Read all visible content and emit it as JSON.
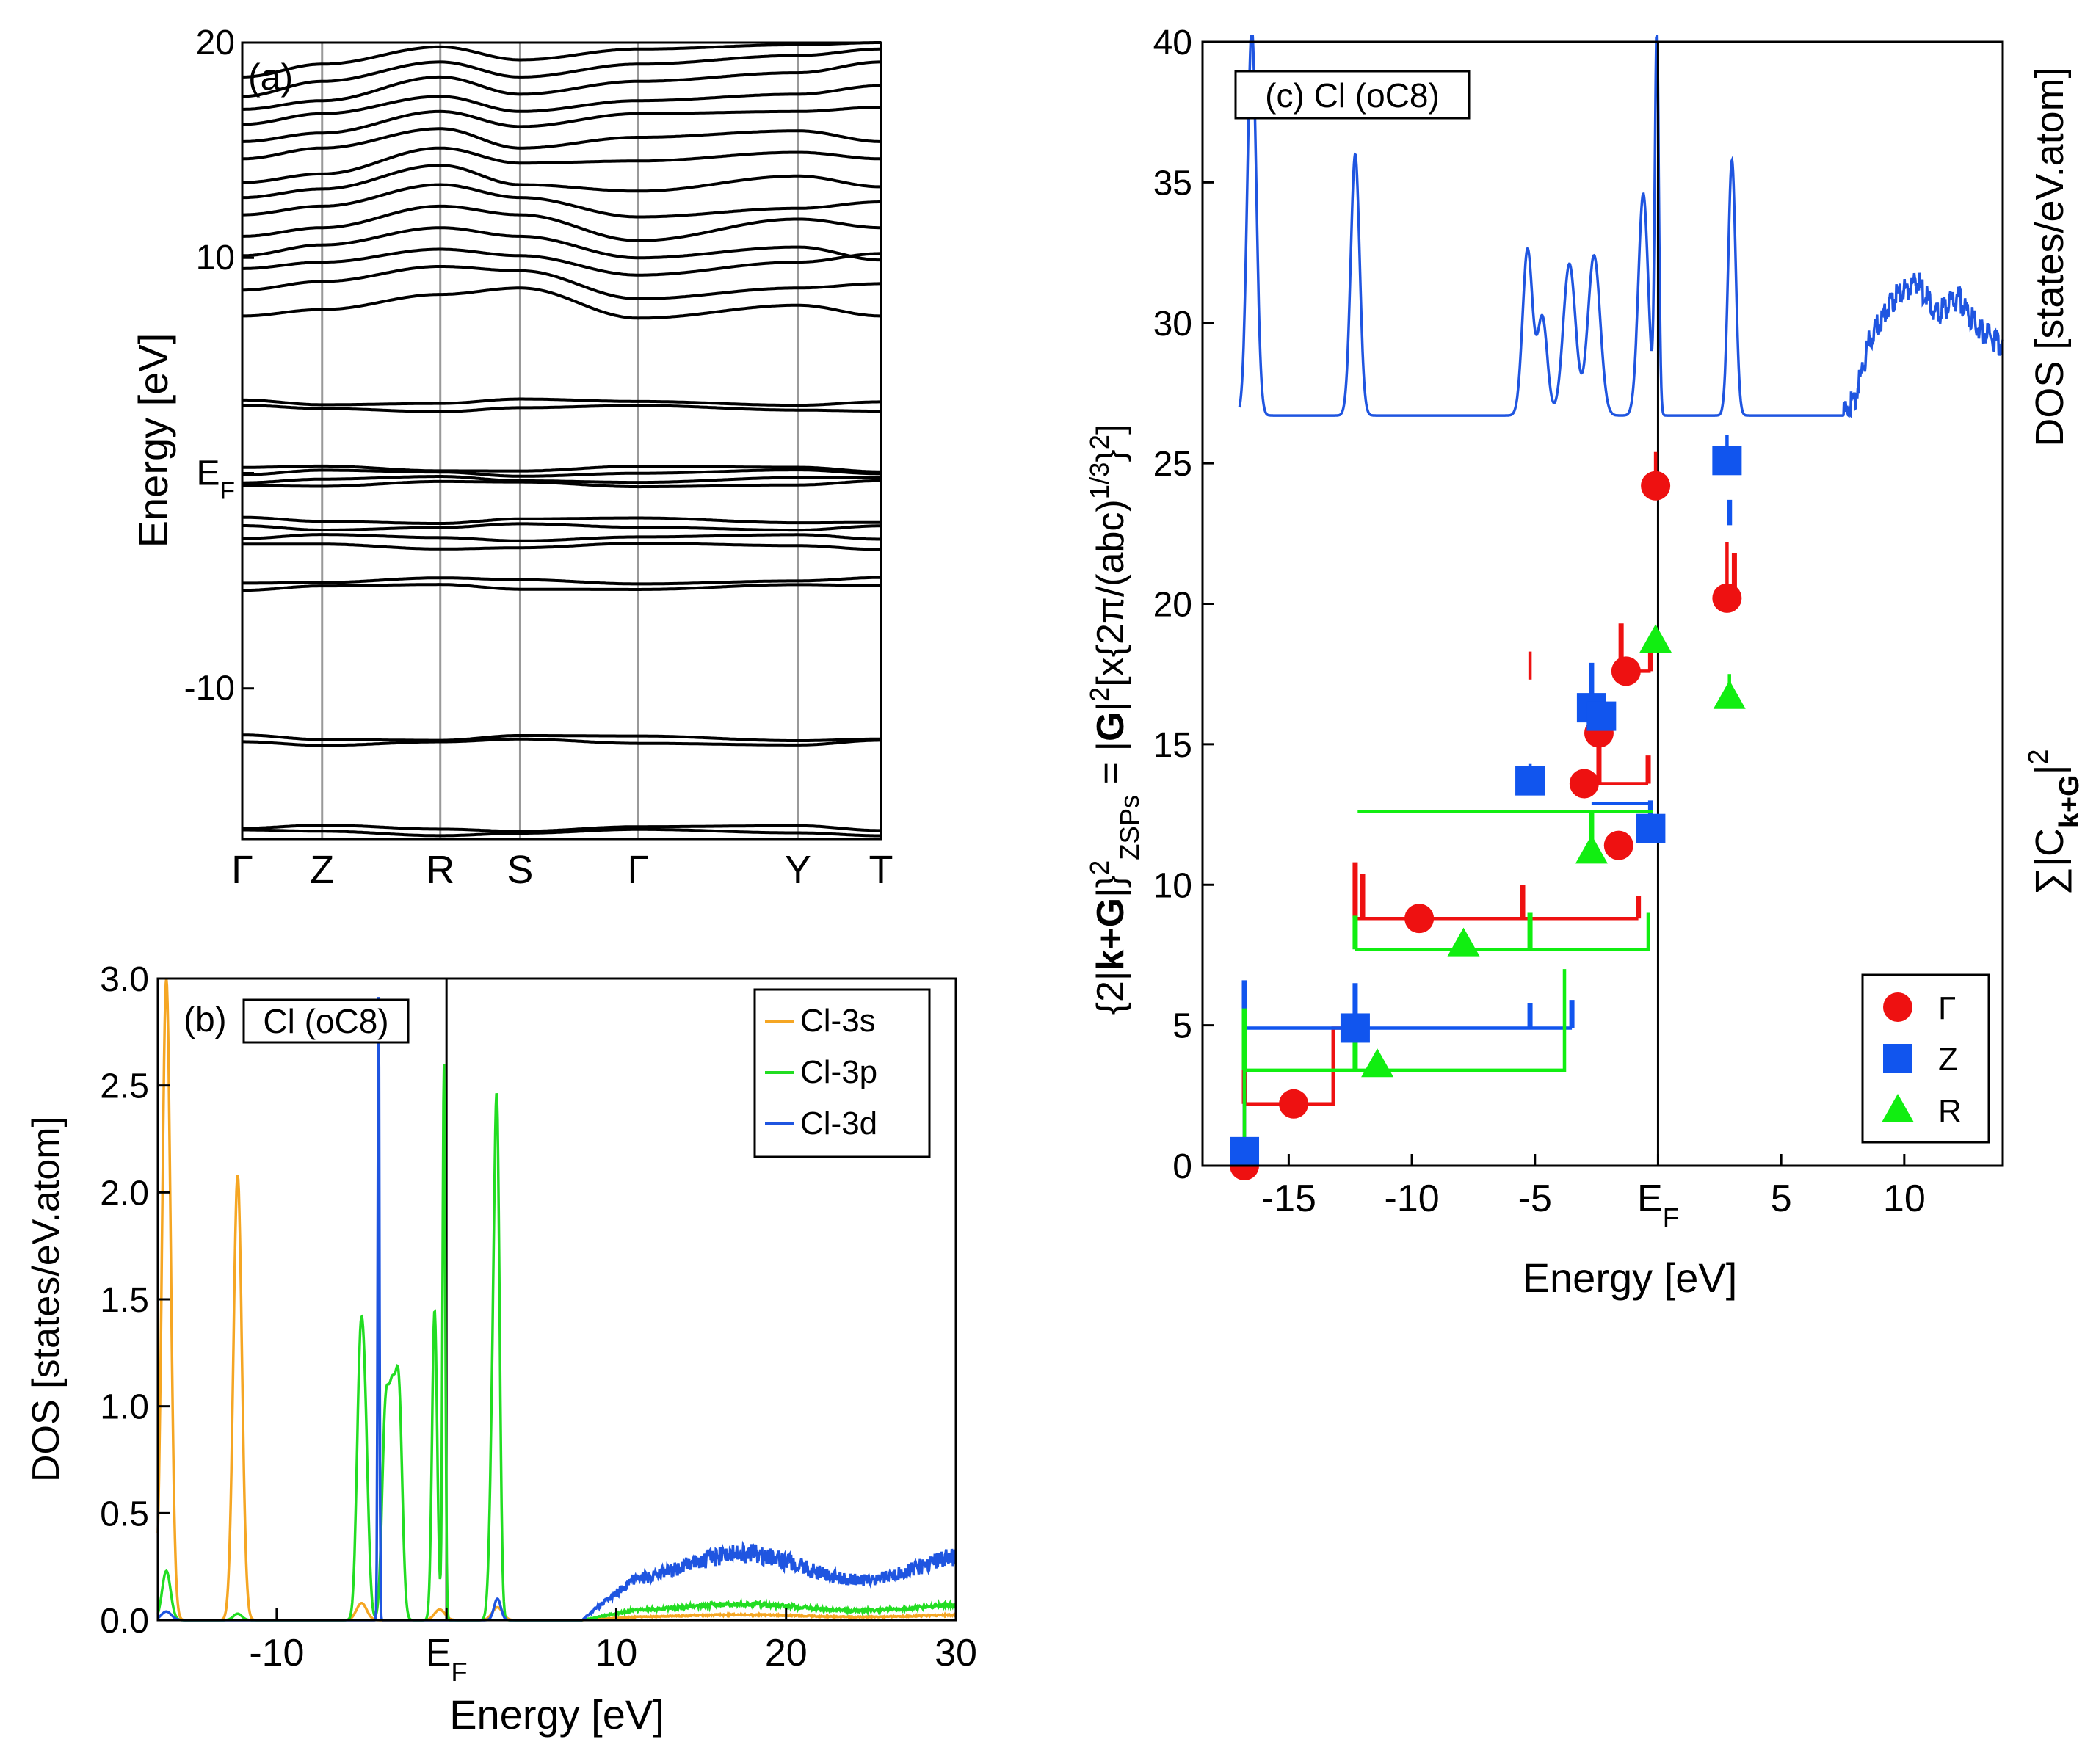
{
  "chart_data": [
    {
      "id": "a",
      "type": "line",
      "panel_label": "(a)",
      "ylabel": "Energy [eV]",
      "ylim": [
        -17,
        20
      ],
      "y_ticks": [
        {
          "value": 20,
          "label": "20"
        },
        {
          "value": 10,
          "label": "10"
        },
        {
          "value": 0,
          "label": "E",
          "sub": "F"
        },
        {
          "value": -10,
          "label": "-10"
        }
      ],
      "k_path": [
        {
          "label": "Γ",
          "pos": 0.0
        },
        {
          "label": "Z",
          "pos": 0.125
        },
        {
          "label": "R",
          "pos": 0.31
        },
        {
          "label": "S",
          "pos": 0.435
        },
        {
          "label": "Γ",
          "pos": 0.62
        },
        {
          "label": "Y",
          "pos": 0.87
        },
        {
          "label": "T",
          "pos": 1.0
        }
      ],
      "flat_bands": [
        -16.5,
        -16.7,
        -12.3,
        -12.5,
        -5.0,
        -5.3,
        -3.0,
        -3.4,
        -2.2,
        -2.5,
        -0.5,
        -0.3,
        0.0,
        0.2,
        3.0,
        3.3
      ],
      "dispersive_bands": [
        [
          7.3,
          7.6,
          8.3,
          8.6,
          7.2,
          7.8,
          7.3
        ],
        [
          8.5,
          8.9,
          9.6,
          9.4,
          8.1,
          8.6,
          8.8
        ],
        [
          9.5,
          9.8,
          10.4,
          10.1,
          9.2,
          9.8,
          10.2
        ],
        [
          10.1,
          10.6,
          11.4,
          11.0,
          10.0,
          10.5,
          9.9
        ],
        [
          11.0,
          11.4,
          12.4,
          12.0,
          10.8,
          11.8,
          11.4
        ],
        [
          12.0,
          12.4,
          13.4,
          12.8,
          11.9,
          12.3,
          12.6
        ],
        [
          12.8,
          13.2,
          14.3,
          13.4,
          13.1,
          13.8,
          13.3
        ],
        [
          13.5,
          13.9,
          15.1,
          14.4,
          14.5,
          14.9,
          14.6
        ],
        [
          14.6,
          15.1,
          16.0,
          15.1,
          15.6,
          15.9,
          15.4
        ],
        [
          15.4,
          15.8,
          16.8,
          16.1,
          16.7,
          16.8,
          17.0
        ],
        [
          16.2,
          16.7,
          17.5,
          16.8,
          17.3,
          17.6,
          18.0
        ],
        [
          16.9,
          17.3,
          18.4,
          17.6,
          18.2,
          18.6,
          19.1
        ],
        [
          17.5,
          18.2,
          19.1,
          18.4,
          19.0,
          19.4,
          19.7
        ],
        [
          18.4,
          19.0,
          19.8,
          19.2,
          19.7,
          19.9,
          20.0
        ]
      ]
    },
    {
      "id": "b",
      "type": "line",
      "panel_label": "(b)",
      "boxed_label": "Cl (oC8)",
      "xlabel": "Energy [eV]",
      "ylabel": "DOS [states/eV.atom]",
      "xlim": [
        -17,
        30
      ],
      "ylim": [
        0,
        3.0
      ],
      "x_ticks": [
        {
          "value": -10,
          "label": "-10"
        },
        {
          "value": 0,
          "label": "E",
          "sub": "F"
        },
        {
          "value": 10,
          "label": "10"
        },
        {
          "value": 20,
          "label": "20"
        },
        {
          "value": 30,
          "label": "30"
        }
      ],
      "y_ticks": [
        {
          "value": 0.0,
          "label": "0.0"
        },
        {
          "value": 0.5,
          "label": "0.5"
        },
        {
          "value": 1.0,
          "label": "1.0"
        },
        {
          "value": 1.5,
          "label": "1.5"
        },
        {
          "value": 2.0,
          "label": "2.0"
        },
        {
          "value": 2.5,
          "label": "2.5"
        },
        {
          "value": 3.0,
          "label": "3.0"
        }
      ],
      "series": [
        {
          "name": "Cl-3s",
          "color": "#f5a623",
          "peaks": [
            [
              -16.5,
              3.0,
              0.25
            ],
            [
              -12.3,
              2.08,
              0.25
            ],
            [
              -5.0,
              0.08,
              0.3
            ],
            [
              -0.4,
              0.05,
              0.3
            ],
            [
              3.0,
              0.06,
              0.3
            ]
          ],
          "tail": 0.02
        },
        {
          "name": "Cl-3p",
          "color": "#22dd22",
          "peaks": [
            [
              -16.5,
              0.23,
              0.25
            ],
            [
              -12.3,
              0.03,
              0.25
            ],
            [
              -5.1,
              1.06,
              0.2
            ],
            [
              -4.8,
              0.8,
              0.2
            ],
            [
              -3.6,
              0.92,
              0.2
            ],
            [
              -2.8,
              1.02,
              0.2
            ],
            [
              -3.2,
              0.88,
              0.2
            ],
            [
              -0.7,
              1.45,
              0.15
            ],
            [
              -0.15,
              2.6,
              0.08
            ],
            [
              3.0,
              1.65,
              0.15
            ],
            [
              2.8,
              1.2,
              0.2
            ]
          ],
          "tail": 0.06
        },
        {
          "name": "Cl-3d",
          "color": "#1f55e0",
          "peaks": [
            [
              -4.0,
              2.95,
              0.05
            ],
            [
              -16.5,
              0.04,
              0.3
            ],
            [
              3.0,
              0.1,
              0.2
            ]
          ],
          "tail": 0.25
        }
      ]
    },
    {
      "id": "c",
      "type": "scatter",
      "boxed_label": "(c) Cl (oC8)",
      "xlabel": "Energy [eV]",
      "ylabel_left": "{2|k+G|}²ZSPs = |G|²[x{2π/(abc)^1/3}²]",
      "ylabel_left_parts": {
        "pre": "{2|",
        "bold": "k+G",
        "mid": "|}",
        "sup1": "2",
        "sub": "ZSPs",
        "eq": " = |",
        "bold2": "G",
        "post": "|",
        "sup2": "2",
        "rest": "[x{2π/(abc)",
        "sup3": "1/3",
        "rest2": "}",
        "sup4": "2",
        "end": "]"
      },
      "ylabel_right_top": "DOS [states/eV.atom]",
      "ylabel_right_bottom": {
        "pre": "∑|C",
        "sub": "k+G",
        "post": "|",
        "sup": "2"
      },
      "xlim": [
        -18.5,
        14
      ],
      "ylim": [
        0,
        40
      ],
      "x_ticks": [
        {
          "value": -15,
          "label": "-15"
        },
        {
          "value": -10,
          "label": "-10"
        },
        {
          "value": -5,
          "label": "-5"
        },
        {
          "value": 0,
          "label": "E",
          "sub": "F"
        },
        {
          "value": 5,
          "label": "5"
        },
        {
          "value": 10,
          "label": "10"
        }
      ],
      "y_ticks": [
        {
          "value": 0,
          "label": "0"
        },
        {
          "value": 5,
          "label": "5"
        },
        {
          "value": 10,
          "label": "10"
        },
        {
          "value": 15,
          "label": "15"
        },
        {
          "value": 20,
          "label": "20"
        },
        {
          "value": 25,
          "label": "25"
        },
        {
          "value": 30,
          "label": "30"
        },
        {
          "value": 35,
          "label": "35"
        },
        {
          "value": 40,
          "label": "40"
        }
      ],
      "legend": [
        {
          "name": "Γ",
          "color": "#ee1111",
          "marker": "circle"
        },
        {
          "name": "Z",
          "color": "#1155ee",
          "marker": "square"
        },
        {
          "name": "R",
          "color": "#11ee11",
          "marker": "triangle"
        }
      ],
      "dos_inset": {
        "color": "#1f55e0",
        "baseline": 26.7,
        "peaks": [
          [
            -16.5,
            40.5,
            0.18
          ],
          [
            -12.3,
            36.0,
            0.18
          ],
          [
            -5.3,
            32.6,
            0.2
          ],
          [
            -4.7,
            30.2,
            0.2
          ],
          [
            -3.6,
            32.1,
            0.25
          ],
          [
            -2.6,
            32.4,
            0.25
          ],
          [
            -0.6,
            34.6,
            0.2
          ],
          [
            -0.05,
            40.5,
            0.08
          ],
          [
            3.0,
            35.8,
            0.15
          ]
        ],
        "high_energy": [
          [
            8.0,
            27.3
          ],
          [
            8.6,
            29.4
          ],
          [
            9.5,
            30.8
          ],
          [
            10.5,
            31.5
          ],
          [
            11.3,
            30.3
          ],
          [
            12.2,
            30.9
          ],
          [
            13.0,
            29.8
          ],
          [
            14.0,
            29.2
          ]
        ]
      },
      "points": [
        {
          "series": "Γ",
          "x": -16.8,
          "y": 0.0
        },
        {
          "series": "Γ",
          "x": -14.8,
          "y": 2.2
        },
        {
          "series": "Γ",
          "x": -9.7,
          "y": 8.8
        },
        {
          "series": "Γ",
          "x": -1.6,
          "y": 11.4
        },
        {
          "series": "Γ",
          "x": -3.0,
          "y": 13.6
        },
        {
          "series": "Γ",
          "x": -2.4,
          "y": 15.4
        },
        {
          "series": "Γ",
          "x": -1.3,
          "y": 17.6
        },
        {
          "series": "Γ",
          "x": -0.1,
          "y": 24.2
        },
        {
          "series": "Γ",
          "x": 2.8,
          "y": 20.2
        },
        {
          "series": "Z",
          "x": -16.8,
          "y": 0.5
        },
        {
          "series": "Z",
          "x": -12.3,
          "y": 4.9
        },
        {
          "series": "Z",
          "x": -5.2,
          "y": 13.7
        },
        {
          "series": "Z",
          "x": -2.7,
          "y": 16.3
        },
        {
          "series": "Z",
          "x": -2.3,
          "y": 16.0
        },
        {
          "series": "Z",
          "x": -0.3,
          "y": 12.0
        },
        {
          "series": "Z",
          "x": 2.8,
          "y": 25.1
        },
        {
          "series": "R",
          "x": -11.4,
          "y": 3.6
        },
        {
          "series": "R",
          "x": -7.9,
          "y": 7.9
        },
        {
          "series": "R",
          "x": -2.7,
          "y": 11.2
        },
        {
          "series": "R",
          "x": -0.1,
          "y": 18.7
        },
        {
          "series": "R",
          "x": 2.9,
          "y": 16.7
        }
      ],
      "steps": [
        {
          "color": "#ee1111",
          "path": [
            [
              -16.8,
              0.0
            ],
            [
              -16.8,
              2.2
            ],
            [
              -13.2,
              2.2
            ],
            [
              -13.2,
              4.9
            ],
            [
              -12.3,
              4.9
            ]
          ],
          "spikes": [
            [
              -16.8,
              2.2,
              6.5
            ]
          ]
        },
        {
          "color": "#ee1111",
          "path": [
            [
              -12.3,
              8.8
            ],
            [
              -0.8,
              8.8
            ]
          ],
          "spikes": [
            [
              -12.3,
              8.8,
              10.8
            ],
            [
              -12.0,
              8.8,
              10.4
            ],
            [
              -5.5,
              8.8,
              10.0
            ],
            [
              -0.8,
              8.8,
              9.6
            ]
          ]
        },
        {
          "color": "#ee1111",
          "path": [
            [
              -3.0,
              13.6
            ],
            [
              -0.4,
              13.6
            ]
          ],
          "spikes": [
            [
              -2.4,
              13.6,
              15.3
            ],
            [
              -0.4,
              13.6,
              14.6
            ]
          ]
        },
        {
          "color": "#ee1111",
          "path": [
            [
              -1.5,
              17.6
            ],
            [
              -0.3,
              17.6
            ]
          ],
          "spikes": [
            [
              -1.5,
              17.6,
              19.3
            ],
            [
              -0.3,
              17.6,
              18.3
            ]
          ]
        },
        {
          "color": "#ee1111",
          "path": [
            [
              -5.2,
              18.3
            ],
            [
              -5.2,
              17.3
            ]
          ],
          "spikes": []
        },
        {
          "color": "#ee1111",
          "path": [
            [
              -0.1,
              24.2
            ],
            [
              -0.1,
              25.4
            ]
          ],
          "spikes": []
        },
        {
          "color": "#ee1111",
          "path": [
            [
              2.8,
              20.2
            ],
            [
              2.8,
              22.2
            ]
          ],
          "spikes": [
            [
              3.1,
              20.2,
              21.8
            ]
          ]
        },
        {
          "color": "#1155ee",
          "path": [
            [
              -16.8,
              0.5
            ],
            [
              -16.8,
              4.9
            ],
            [
              -3.5,
              4.9
            ]
          ],
          "spikes": [
            [
              -16.8,
              4.9,
              6.6
            ],
            [
              -12.3,
              4.9,
              6.5
            ],
            [
              -5.2,
              4.9,
              5.8
            ],
            [
              -3.5,
              4.9,
              5.9
            ]
          ]
        },
        {
          "color": "#1155ee",
          "path": [
            [
              -5.2,
              13.7
            ],
            [
              -5.2,
              14.3
            ]
          ],
          "spikes": []
        },
        {
          "color": "#1155ee",
          "path": [
            [
              -2.7,
              12.9
            ],
            [
              -0.3,
              12.9
            ]
          ],
          "spikes": [
            [
              -2.7,
              16.3,
              17.9
            ],
            [
              -0.3,
              12.0,
              13.0
            ]
          ]
        },
        {
          "color": "#1155ee",
          "path": [
            [
              2.8,
              25.1
            ],
            [
              2.8,
              26.0
            ]
          ],
          "spikes": [
            [
              2.9,
              22.8,
              23.7
            ]
          ]
        },
        {
          "color": "#11ee11",
          "path": [
            [
              -16.8,
              0.0
            ],
            [
              -16.8,
              3.4
            ],
            [
              -3.8,
              3.4
            ],
            [
              -3.8,
              7.0
            ]
          ],
          "spikes": [
            [
              -16.8,
              3.4,
              5.6
            ],
            [
              -12.3,
              3.4,
              4.8
            ]
          ]
        },
        {
          "color": "#11ee11",
          "path": [
            [
              -12.3,
              7.7
            ],
            [
              -0.4,
              7.7
            ],
            [
              -0.4,
              9.0
            ]
          ],
          "spikes": [
            [
              -12.3,
              7.7,
              8.9
            ],
            [
              -5.2,
              7.7,
              9.0
            ]
          ]
        },
        {
          "color": "#11ee11",
          "path": [
            [
              -12.2,
              12.6
            ],
            [
              -0.2,
              12.6
            ]
          ],
          "spikes": [
            [
              -2.7,
              11.2,
              12.6
            ]
          ]
        },
        {
          "color": "#11ee11",
          "path": [
            [
              2.9,
              16.7
            ],
            [
              2.9,
              17.5
            ]
          ],
          "spikes": []
        }
      ]
    }
  ]
}
